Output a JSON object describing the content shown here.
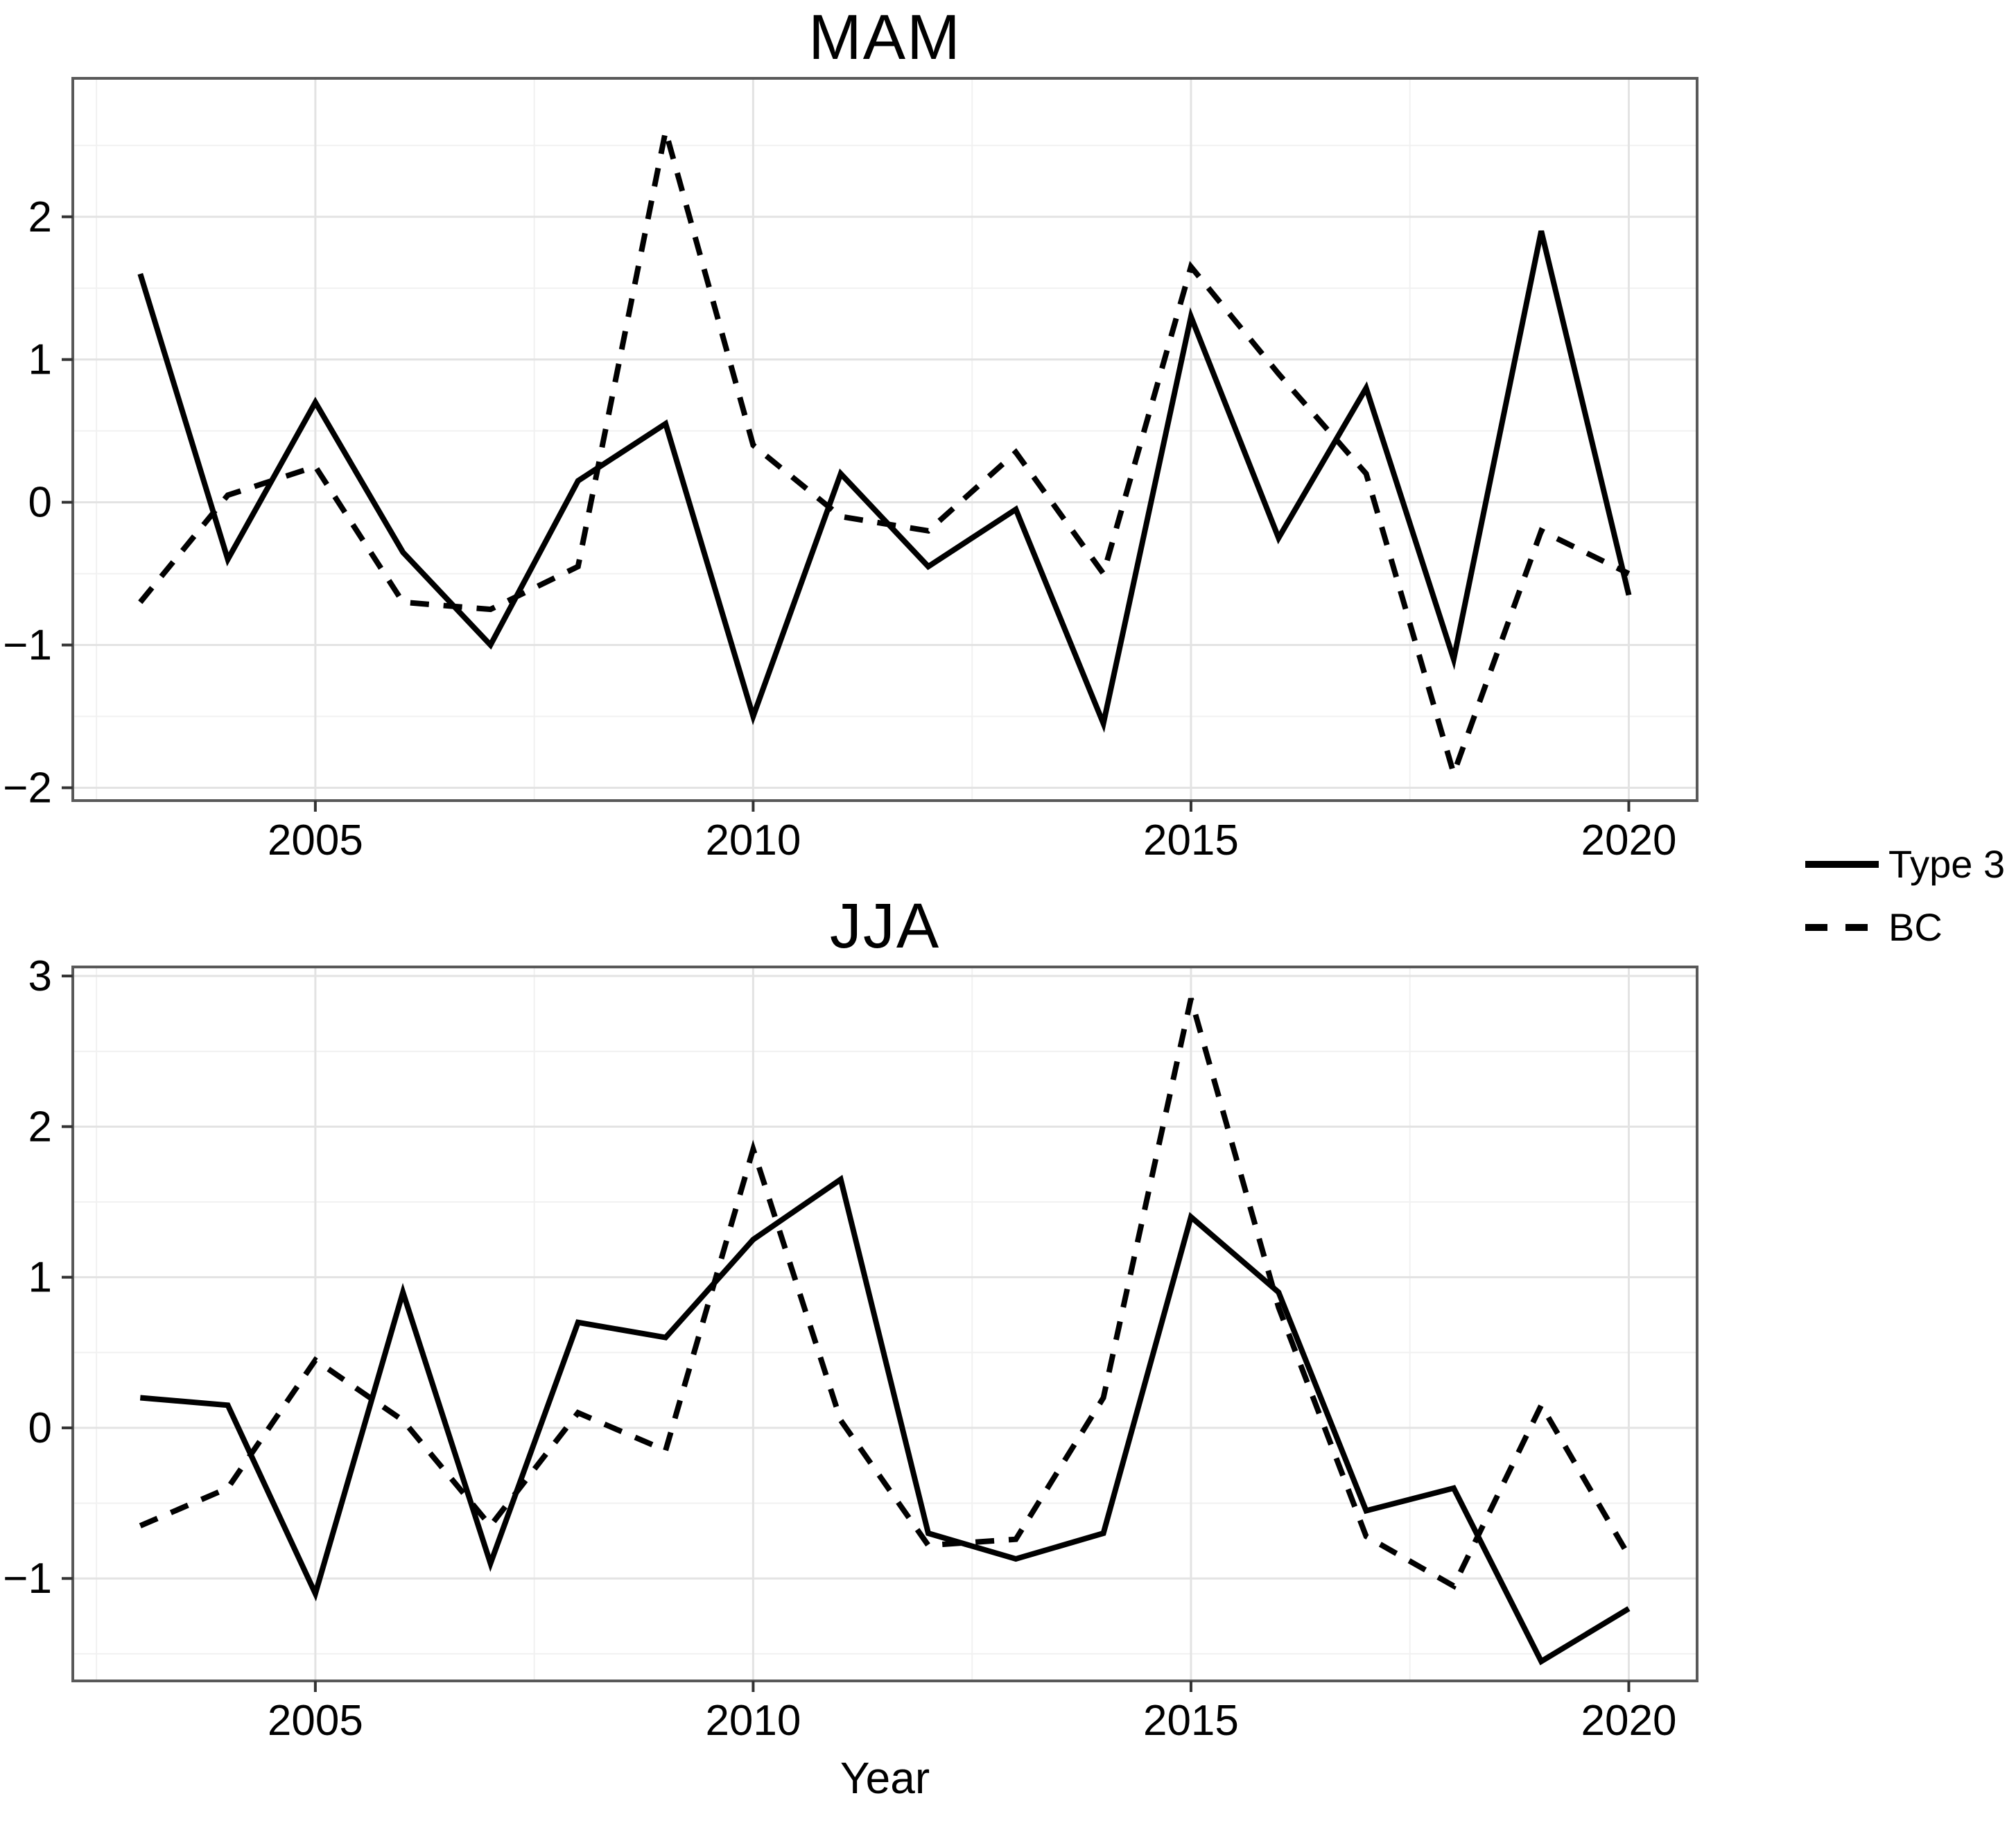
{
  "page": {
    "background": "#ffffff",
    "text_color": "#000000",
    "line_color": "#000000",
    "grid_major_color": "#e3e3e3",
    "grid_minor_color": "#f1f1f1",
    "panel_border_color": "#595959"
  },
  "legend": {
    "items": [
      {
        "label": "Type 3",
        "style": "solid"
      },
      {
        "label": "BC",
        "style": "dashed"
      }
    ]
  },
  "bottom_axis_label": "Year",
  "chart_data": [
    {
      "type": "line",
      "title": "MAM",
      "xlabel": "",
      "ylabel": "",
      "legend_position": "right-outside",
      "grid": "major+minor",
      "x": [
        2003,
        2004,
        2005,
        2006,
        2007,
        2008,
        2009,
        2010,
        2011,
        2012,
        2013,
        2014,
        2015,
        2016,
        2017,
        2018,
        2019,
        2020
      ],
      "x_ticks": [
        2005,
        2010,
        2015,
        2020
      ],
      "y_ticks": [
        -2,
        -1,
        0,
        1,
        2
      ],
      "xlim": [
        2002.23,
        2020.78
      ],
      "ylim": [
        -2.09,
        2.97
      ],
      "series": [
        {
          "name": "Type 3",
          "style": "solid",
          "values": [
            1.6,
            -0.4,
            0.7,
            -0.35,
            -1.0,
            0.15,
            0.55,
            -1.5,
            0.2,
            -0.45,
            -0.05,
            -1.55,
            1.3,
            -0.25,
            0.8,
            -1.1,
            1.9,
            -0.65
          ]
        },
        {
          "name": "BC",
          "style": "dashed",
          "values": [
            -0.7,
            0.05,
            0.25,
            -0.7,
            -0.75,
            -0.45,
            2.6,
            0.4,
            -0.1,
            -0.2,
            0.35,
            -0.5,
            1.65,
            0.9,
            0.2,
            -1.9,
            -0.2,
            -0.5
          ]
        }
      ]
    },
    {
      "type": "line",
      "title": "JJA",
      "xlabel": "Year",
      "ylabel": "",
      "legend_position": "right-outside",
      "grid": "major+minor",
      "x": [
        2003,
        2004,
        2005,
        2006,
        2007,
        2008,
        2009,
        2010,
        2011,
        2012,
        2013,
        2014,
        2015,
        2016,
        2017,
        2018,
        2019,
        2020
      ],
      "x_ticks": [
        2005,
        2010,
        2015,
        2020
      ],
      "y_ticks": [
        -1,
        0,
        1,
        2,
        3
      ],
      "xlim": [
        2002.23,
        2020.78
      ],
      "ylim": [
        -1.68,
        3.06
      ],
      "series": [
        {
          "name": "Type 3",
          "style": "solid",
          "values": [
            0.2,
            0.15,
            -1.1,
            0.9,
            -0.9,
            0.7,
            0.6,
            1.25,
            1.65,
            -0.7,
            -0.87,
            -0.7,
            1.4,
            0.9,
            -0.55,
            -0.4,
            -1.55,
            -1.2
          ]
        },
        {
          "name": "BC",
          "style": "dashed",
          "values": [
            -0.65,
            -0.4,
            0.45,
            0.05,
            -0.65,
            0.1,
            -0.15,
            1.85,
            0.05,
            -0.78,
            -0.74,
            0.2,
            2.85,
            0.8,
            -0.72,
            -1.05,
            0.15,
            -0.85
          ]
        }
      ]
    }
  ]
}
